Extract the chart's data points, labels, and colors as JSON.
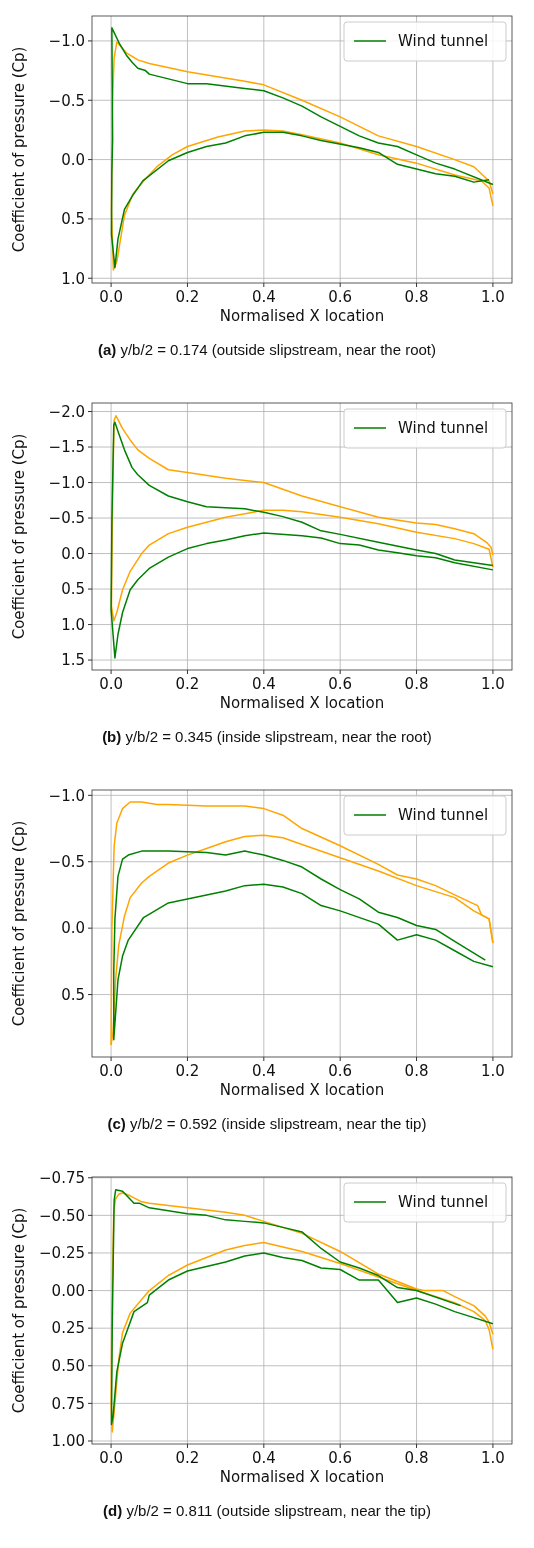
{
  "chart_data": [
    {
      "type": "line",
      "title": "(a) y/b/2 = 0.174 (outside slipstream, near the root)",
      "xlabel": "Normalised X location",
      "ylabel": "Coefficient of pressure (Cp)",
      "xlim": [
        -0.05,
        1.05
      ],
      "ylim": [
        1.04,
        -1.21
      ],
      "xticks": [
        {
          "value": 0,
          "label": "0.0"
        },
        {
          "value": 0.2,
          "label": "0.2"
        },
        {
          "value": 0.4,
          "label": "0.4"
        },
        {
          "value": 0.6,
          "label": "0.6"
        },
        {
          "value": 0.8,
          "label": "0.8"
        },
        {
          "value": 1,
          "label": "1.0"
        }
      ],
      "yticks": [
        {
          "value": -1,
          "label": "−1.0"
        },
        {
          "value": -0.5,
          "label": "−0.5"
        },
        {
          "value": 0,
          "label": "0.0"
        },
        {
          "value": 0.5,
          "label": "0.5"
        },
        {
          "value": 1,
          "label": "1.0"
        }
      ],
      "grid": true,
      "legend": "top right",
      "series": [
        {
          "color": "#ffa500",
          "x": [
            1.0,
            0.99,
            0.95,
            0.9,
            0.8,
            0.7,
            0.6,
            0.5,
            0.4,
            0.35,
            0.2,
            0.1,
            0.07,
            0.04,
            0.015,
            0.008,
            0.003,
            0.001,
            0.006,
            0.015,
            0.035,
            0.057,
            0.088,
            0.12,
            0.16,
            0.2,
            0.28,
            0.35,
            0.4,
            0.45,
            0.5,
            0.6,
            0.7,
            0.8,
            0.9,
            0.97,
            0.99,
            1.0
          ],
          "values": [
            0.29,
            0.18,
            0.06,
            0.0,
            -0.11,
            -0.2,
            -0.36,
            -0.5,
            -0.63,
            -0.66,
            -0.74,
            -0.81,
            -0.84,
            -0.9,
            -0.99,
            -0.86,
            -0.42,
            0.42,
            0.93,
            0.86,
            0.47,
            0.29,
            0.17,
            0.06,
            -0.04,
            -0.11,
            -0.19,
            -0.24,
            -0.25,
            -0.24,
            -0.21,
            -0.14,
            -0.04,
            0.03,
            0.13,
            0.18,
            0.24,
            0.39
          ]
        },
        {
          "name": "Wind tunnel",
          "color": "#008000",
          "x": [
            1.0,
            0.9,
            0.85,
            0.8,
            0.75,
            0.7,
            0.65,
            0.55,
            0.5,
            0.45,
            0.4,
            0.35,
            0.25,
            0.2,
            0.1,
            0.09,
            0.07,
            0.055,
            0.04,
            0.023,
            0.002,
            0.004,
            0.002,
            0.001,
            0.01,
            0.018,
            0.035,
            0.055,
            0.083,
            0.15,
            0.2,
            0.25,
            0.3,
            0.35,
            0.4,
            0.45,
            0.5,
            0.55,
            0.65,
            0.7,
            0.75,
            0.8,
            0.85,
            0.9,
            0.95,
            0.99
          ],
          "values": [
            0.21,
            0.08,
            0.03,
            -0.04,
            -0.11,
            -0.14,
            -0.2,
            -0.36,
            -0.45,
            -0.52,
            -0.58,
            -0.6,
            -0.64,
            -0.64,
            -0.72,
            -0.75,
            -0.77,
            -0.82,
            -0.88,
            -0.97,
            -1.11,
            -0.17,
            0.11,
            0.63,
            0.91,
            0.67,
            0.42,
            0.31,
            0.18,
            0.01,
            -0.06,
            -0.11,
            -0.14,
            -0.2,
            -0.23,
            -0.23,
            -0.2,
            -0.16,
            -0.1,
            -0.06,
            0.04,
            0.08,
            0.12,
            0.14,
            0.19,
            0.17
          ]
        }
      ]
    },
    {
      "type": "line",
      "title": "(b) y/b/2 = 0.345 (inside slipstream, near the root)",
      "xlabel": "Normalised X location",
      "ylabel": "Coefficient of pressure (Cp)",
      "xlim": [
        -0.05,
        1.05
      ],
      "ylim": [
        1.64,
        -2.12
      ],
      "xticks": [
        {
          "value": 0,
          "label": "0.0"
        },
        {
          "value": 0.2,
          "label": "0.2"
        },
        {
          "value": 0.4,
          "label": "0.4"
        },
        {
          "value": 0.6,
          "label": "0.6"
        },
        {
          "value": 0.8,
          "label": "0.8"
        },
        {
          "value": 1,
          "label": "1.0"
        }
      ],
      "yticks": [
        {
          "value": -2,
          "label": "−2.0"
        },
        {
          "value": -1.5,
          "label": "−1.5"
        },
        {
          "value": -1,
          "label": "−1.0"
        },
        {
          "value": -0.5,
          "label": "−0.5"
        },
        {
          "value": 0,
          "label": "0.0"
        },
        {
          "value": 0.5,
          "label": "0.5"
        },
        {
          "value": 1,
          "label": "1.0"
        },
        {
          "value": 1.5,
          "label": "1.5"
        }
      ],
      "grid": true,
      "legend": "top right",
      "series": [
        {
          "color": "#ffa500",
          "x": [
            1.0,
            0.995,
            0.985,
            0.95,
            0.9,
            0.85,
            0.8,
            0.7,
            0.6,
            0.5,
            0.4,
            0.3,
            0.2,
            0.15,
            0.1,
            0.07,
            0.05,
            0.03,
            0.013,
            0.008,
            0.004,
            0.001,
            0.007,
            0.015,
            0.03,
            0.05,
            0.08,
            0.1,
            0.15,
            0.2,
            0.3,
            0.4,
            0.45,
            0.5,
            0.6,
            0.7,
            0.8,
            0.9,
            0.95,
            0.99,
            1.0
          ],
          "values": [
            0.02,
            -0.09,
            -0.15,
            -0.28,
            -0.35,
            -0.41,
            -0.43,
            -0.51,
            -0.66,
            -0.81,
            -1.0,
            -1.06,
            -1.14,
            -1.18,
            -1.34,
            -1.46,
            -1.6,
            -1.76,
            -1.94,
            -1.88,
            -0.88,
            0.74,
            0.95,
            0.83,
            0.51,
            0.25,
            0.0,
            -0.12,
            -0.28,
            -0.37,
            -0.51,
            -0.61,
            -0.61,
            -0.59,
            -0.51,
            -0.42,
            -0.3,
            -0.21,
            -0.14,
            -0.06,
            0.19
          ]
        },
        {
          "name": "Wind tunnel",
          "color": "#008000",
          "x": [
            1.0,
            0.9,
            0.85,
            0.8,
            0.7,
            0.6,
            0.55,
            0.5,
            0.45,
            0.4,
            0.35,
            0.25,
            0.2,
            0.15,
            0.1,
            0.07,
            0.055,
            0.035,
            0.02,
            0.01,
            0.007,
            0.002,
            0.0,
            0.01,
            0.018,
            0.03,
            0.05,
            0.07,
            0.1,
            0.15,
            0.2,
            0.25,
            0.3,
            0.35,
            0.4,
            0.5,
            0.55,
            0.6,
            0.65,
            0.7,
            0.75,
            0.8,
            0.85,
            0.9,
            1.0
          ],
          "values": [
            0.17,
            0.09,
            0.0,
            -0.05,
            -0.16,
            -0.27,
            -0.32,
            -0.44,
            -0.52,
            -0.58,
            -0.63,
            -0.66,
            -0.73,
            -0.81,
            -0.96,
            -1.11,
            -1.21,
            -1.46,
            -1.69,
            -1.85,
            -1.81,
            -0.42,
            0.79,
            1.47,
            1.14,
            0.83,
            0.51,
            0.37,
            0.21,
            0.05,
            -0.07,
            -0.14,
            -0.19,
            -0.25,
            -0.29,
            -0.25,
            -0.22,
            -0.14,
            -0.12,
            -0.05,
            -0.01,
            0.03,
            0.06,
            0.13,
            0.23
          ]
        }
      ]
    },
    {
      "type": "line",
      "title": "(c) y/b/2 = 0.592 (inside slipstream, near the tip)",
      "xlabel": "Normalised X location",
      "ylabel": "Coefficient of pressure (Cp)",
      "xlim": [
        -0.05,
        1.05
      ],
      "ylim": [
        0.97,
        -1.04
      ],
      "xticks": [
        {
          "value": 0,
          "label": "0.0"
        },
        {
          "value": 0.2,
          "label": "0.2"
        },
        {
          "value": 0.4,
          "label": "0.4"
        },
        {
          "value": 0.6,
          "label": "0.6"
        },
        {
          "value": 0.8,
          "label": "0.8"
        },
        {
          "value": 1,
          "label": "1.0"
        }
      ],
      "yticks": [
        {
          "value": -1,
          "label": "−1.0"
        },
        {
          "value": -0.5,
          "label": "−0.5"
        },
        {
          "value": 0,
          "label": "0.0"
        },
        {
          "value": 0.5,
          "label": "0.5"
        }
      ],
      "grid": true,
      "legend": "top right",
      "series": [
        {
          "color": "#ffa500",
          "x": [
            1.0,
            0.99,
            0.97,
            0.96,
            0.9,
            0.85,
            0.8,
            0.75,
            0.7,
            0.6,
            0.5,
            0.45,
            0.4,
            0.35,
            0.3,
            0.25,
            0.15,
            0.12,
            0.08,
            0.05,
            0.03,
            0.015,
            0.008,
            0.002,
            0.0
          ],
          "values": [
            0.11,
            -0.07,
            -0.1,
            -0.17,
            -0.25,
            -0.32,
            -0.37,
            -0.4,
            -0.48,
            -0.62,
            -0.75,
            -0.85,
            -0.9,
            -0.92,
            -0.92,
            -0.92,
            -0.93,
            -0.93,
            -0.95,
            -0.95,
            -0.9,
            -0.79,
            -0.62,
            0.01,
            0.88
          ]
        },
        {
          "color": "#ffa500",
          "x": [
            0.0,
            0.005,
            0.012,
            0.02,
            0.035,
            0.05,
            0.08,
            0.1,
            0.15,
            0.2,
            0.25,
            0.3,
            0.35,
            0.4,
            0.45,
            0.5,
            0.6,
            0.7,
            0.8,
            0.9,
            0.95,
            0.97,
            0.99,
            1.0
          ],
          "values": [
            0.88,
            0.78,
            0.38,
            0.13,
            -0.09,
            -0.23,
            -0.34,
            -0.39,
            -0.49,
            -0.55,
            -0.6,
            -0.65,
            -0.69,
            -0.7,
            -0.68,
            -0.63,
            -0.53,
            -0.43,
            -0.32,
            -0.23,
            -0.13,
            -0.1,
            -0.07,
            0.11
          ]
        },
        {
          "name": "Wind tunnel",
          "color": "#008000",
          "x": [
            0.98,
            0.9,
            0.85,
            0.8,
            0.75,
            0.7,
            0.65,
            0.6,
            0.55,
            0.5,
            0.45,
            0.4,
            0.35,
            0.3,
            0.25,
            0.15,
            0.1,
            0.08,
            0.045,
            0.03,
            0.018,
            0.01,
            0.007,
            0.007,
            0.018,
            0.03,
            0.045,
            0.085,
            0.15,
            0.2,
            0.3,
            0.35,
            0.4,
            0.45,
            0.5,
            0.55,
            0.6,
            0.7,
            0.75,
            0.8,
            0.85,
            0.9,
            0.95,
            1.0
          ],
          "values": [
            0.24,
            0.1,
            0.01,
            -0.02,
            -0.08,
            -0.12,
            -0.22,
            -0.29,
            -0.37,
            -0.46,
            -0.51,
            -0.55,
            -0.58,
            -0.55,
            -0.57,
            -0.58,
            -0.58,
            -0.58,
            -0.55,
            -0.52,
            -0.39,
            -0.07,
            0.33,
            0.84,
            0.39,
            0.21,
            0.09,
            -0.08,
            -0.19,
            -0.22,
            -0.28,
            -0.32,
            -0.33,
            -0.31,
            -0.26,
            -0.17,
            -0.13,
            -0.03,
            0.09,
            0.05,
            0.09,
            0.17,
            0.25,
            0.29
          ]
        }
      ]
    },
    {
      "type": "line",
      "title": "(d) y/b/2 = 0.811 (outside slipstream, near the tip)",
      "xlabel": "Normalised X location",
      "ylabel": "Coefficient of pressure (Cp)",
      "xlim": [
        -0.05,
        1.05
      ],
      "ylim": [
        1.02,
        -0.755
      ],
      "xticks": [
        {
          "value": 0,
          "label": "0.0"
        },
        {
          "value": 0.2,
          "label": "0.2"
        },
        {
          "value": 0.4,
          "label": "0.4"
        },
        {
          "value": 0.6,
          "label": "0.6"
        },
        {
          "value": 0.8,
          "label": "0.8"
        },
        {
          "value": 1,
          "label": "1.0"
        }
      ],
      "yticks": [
        {
          "value": -0.75,
          "label": "−0.75"
        },
        {
          "value": -0.5,
          "label": "−0.50"
        },
        {
          "value": -0.25,
          "label": "−0.25"
        },
        {
          "value": 0,
          "label": "0.00"
        },
        {
          "value": 0.25,
          "label": "0.25"
        },
        {
          "value": 0.5,
          "label": "0.50"
        },
        {
          "value": 0.75,
          "label": "0.75"
        },
        {
          "value": 1,
          "label": "1.00"
        }
      ],
      "grid": true,
      "legend": "top right",
      "series": [
        {
          "color": "#ffa500",
          "x": [
            1.0,
            0.99,
            0.98,
            0.95,
            0.9,
            0.87,
            0.85,
            0.82,
            0.8,
            0.7,
            0.6,
            0.5,
            0.45,
            0.4,
            0.35,
            0.3,
            0.2,
            0.1,
            0.08,
            0.05,
            0.03,
            0.02,
            0.012,
            0.007,
            0.002,
            0.0,
            0.003,
            0.008,
            0.02,
            0.03,
            0.05,
            0.08,
            0.1,
            0.15,
            0.2,
            0.25,
            0.3,
            0.35,
            0.4,
            0.45,
            0.5,
            0.6,
            0.7,
            0.8,
            0.9,
            0.95,
            0.98,
            0.99,
            1.0
          ],
          "values": [
            0.29,
            0.21,
            0.17,
            0.1,
            0.04,
            0.0,
            0.0,
            0.0,
            -0.01,
            -0.11,
            -0.26,
            -0.38,
            -0.42,
            -0.46,
            -0.5,
            -0.52,
            -0.55,
            -0.58,
            -0.59,
            -0.63,
            -0.65,
            -0.64,
            -0.61,
            -0.53,
            0.13,
            0.76,
            0.94,
            0.81,
            0.46,
            0.28,
            0.15,
            0.06,
            0.0,
            -0.1,
            -0.17,
            -0.22,
            -0.27,
            -0.3,
            -0.32,
            -0.29,
            -0.26,
            -0.18,
            -0.09,
            0.0,
            0.08,
            0.14,
            0.2,
            0.26,
            0.39
          ]
        },
        {
          "name": "Wind tunnel",
          "color": "#008000",
          "x": [
            0.915,
            0.8,
            0.75,
            0.7,
            0.65,
            0.6,
            0.55,
            0.5,
            0.45,
            0.4,
            0.35,
            0.3,
            0.25,
            0.2,
            0.1,
            0.075,
            0.06,
            0.03,
            0.012,
            0.008,
            0.003,
            0.001,
            0.005,
            0.015,
            0.03,
            0.06,
            0.095,
            0.1,
            0.15,
            0.2,
            0.25,
            0.3,
            0.35,
            0.4,
            0.45,
            0.5,
            0.55,
            0.6,
            0.65,
            0.7,
            0.75,
            0.8,
            0.85,
            0.9,
            0.95,
            1.0
          ],
          "values": [
            0.1,
            0.0,
            -0.02,
            -0.1,
            -0.15,
            -0.19,
            -0.28,
            -0.39,
            -0.42,
            -0.45,
            -0.46,
            -0.47,
            -0.5,
            -0.51,
            -0.55,
            -0.58,
            -0.58,
            -0.66,
            -0.67,
            -0.6,
            0.24,
            0.89,
            0.84,
            0.54,
            0.35,
            0.14,
            0.08,
            0.03,
            -0.07,
            -0.13,
            -0.16,
            -0.19,
            -0.23,
            -0.25,
            -0.22,
            -0.2,
            -0.15,
            -0.14,
            -0.07,
            -0.07,
            0.08,
            0.05,
            0.09,
            0.14,
            0.18,
            0.22
          ]
        }
      ]
    }
  ]
}
